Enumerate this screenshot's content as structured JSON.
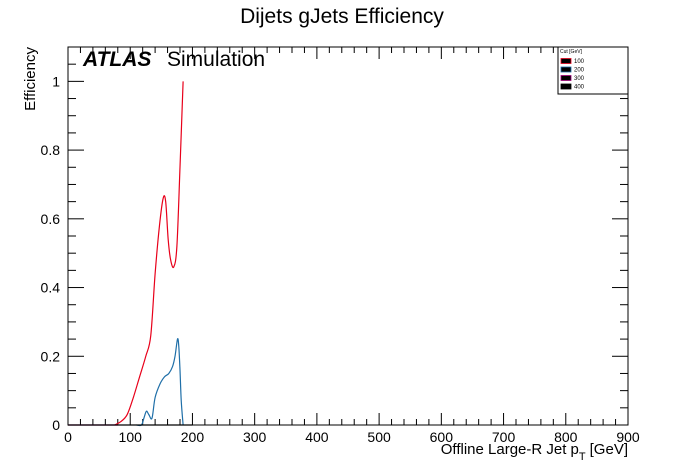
{
  "chart_data": {
    "type": "line",
    "title": "Dijets gJets Efficiency",
    "atlas_label": "ATLAS",
    "atlas_sublabel": "Simulation",
    "xlabel_main": "Offline Large-R Jet p",
    "xlabel_sub": "T",
    "xlabel_unit": "[GeV]",
    "ylabel": "Efficiency",
    "xlim": [
      0,
      900
    ],
    "ylim": [
      0,
      1.1
    ],
    "x_ticks": [
      0,
      100,
      200,
      300,
      400,
      500,
      600,
      700,
      800,
      900
    ],
    "y_ticks": [
      0,
      0.2,
      0.4,
      0.6,
      0.8,
      1
    ],
    "y_tick_labels": [
      "0",
      "0.2",
      "0.4",
      "0.6",
      "0.8",
      "1"
    ],
    "grid": false,
    "legend": {
      "title": "Cut [GeV]",
      "placement": "top-right",
      "entries": [
        "100",
        "200",
        "300",
        "400"
      ]
    },
    "series": [
      {
        "name": "100",
        "color": "#e8001a",
        "x": [
          75,
          85,
          95,
          105,
          115,
          125,
          133,
          140,
          147,
          153,
          157,
          161,
          165,
          170,
          175,
          180,
          185
        ],
        "y": [
          0.0,
          0.01,
          0.03,
          0.08,
          0.14,
          0.2,
          0.26,
          0.44,
          0.58,
          0.66,
          0.65,
          0.54,
          0.48,
          0.46,
          0.52,
          0.75,
          1.0
        ]
      },
      {
        "name": "200",
        "color": "#1f6fa8",
        "x": [
          110,
          118,
          122,
          126,
          130,
          135,
          140,
          148,
          155,
          162,
          168,
          172,
          176,
          178,
          180,
          182,
          185
        ],
        "y": [
          0.0,
          0.0,
          0.02,
          0.04,
          0.03,
          0.02,
          0.08,
          0.12,
          0.14,
          0.15,
          0.17,
          0.2,
          0.25,
          0.23,
          0.16,
          0.07,
          0.0
        ]
      },
      {
        "name": "300",
        "color": "#a0007a",
        "x": [
          0,
          40,
          60,
          80
        ],
        "y": [
          0,
          0,
          0,
          0
        ]
      },
      {
        "name": "400",
        "color": "#000000",
        "x": [
          0,
          200
        ],
        "y": [
          0,
          0
        ]
      }
    ]
  }
}
